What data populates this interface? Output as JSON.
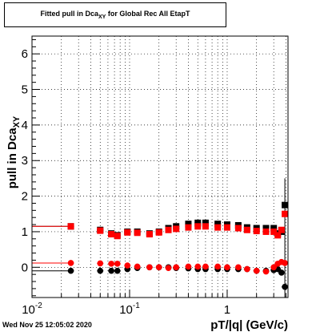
{
  "chart_data": {
    "type": "scatter",
    "title": "Fitted pull in Dca",
    "title_sub": "XY",
    "title_suffix": " for Global Rec All EtapT",
    "xlabel": "pT/|q| (GeV/c)",
    "ylabel": "pull in Dca",
    "ylabel_sub": "XY",
    "x_scale": "log",
    "xlim": [
      0.01,
      4.2
    ],
    "ylim": [
      -0.85,
      6.5
    ],
    "grid": true,
    "x_ticks": [
      {
        "value": 0.01,
        "label": "10",
        "exp": "-2"
      },
      {
        "value": 0.1,
        "label": "10",
        "exp": "-1"
      },
      {
        "value": 1,
        "label": "1",
        "exp": ""
      }
    ],
    "y_ticks": [
      0,
      1,
      2,
      3,
      4,
      5,
      6
    ],
    "colors": {
      "black": "#000000",
      "red": "#ff0000"
    },
    "series": [
      {
        "color": "black",
        "marker": "circle",
        "x": [
          0.025,
          0.05,
          0.065,
          0.075,
          0.095,
          0.12,
          0.16,
          0.2,
          0.25,
          0.3,
          0.4,
          0.5,
          0.6,
          0.8,
          1.0,
          1.3,
          1.6,
          2.0,
          2.5,
          3.0,
          3.3,
          3.6,
          3.9
        ],
        "y": [
          -0.1,
          -0.1,
          -0.1,
          -0.1,
          -0.05,
          -0.02,
          0.0,
          0.0,
          0.0,
          -0.02,
          -0.03,
          -0.05,
          -0.05,
          -0.05,
          -0.05,
          -0.05,
          -0.05,
          -0.1,
          -0.1,
          -0.08,
          -0.05,
          -0.15,
          -0.55
        ]
      },
      {
        "color": "red",
        "marker": "circle",
        "x": [
          0.025,
          0.05,
          0.065,
          0.075,
          0.095,
          0.12,
          0.16,
          0.2,
          0.25,
          0.3,
          0.4,
          0.5,
          0.6,
          0.8,
          1.0,
          1.3,
          1.6,
          2.0,
          2.5,
          3.0,
          3.3,
          3.6,
          3.9
        ],
        "y": [
          0.12,
          0.11,
          0.1,
          0.1,
          0.05,
          0.02,
          0.0,
          0.0,
          -0.02,
          0.0,
          0.02,
          0.02,
          0.02,
          0.02,
          0.0,
          0.0,
          -0.05,
          -0.1,
          -0.12,
          0.0,
          0.1,
          0.15,
          0.12
        ]
      },
      {
        "color": "black",
        "marker": "square",
        "x": [
          0.025,
          0.05,
          0.065,
          0.075,
          0.095,
          0.12,
          0.16,
          0.2,
          0.25,
          0.3,
          0.4,
          0.5,
          0.6,
          0.8,
          1.0,
          1.3,
          1.6,
          2.0,
          2.5,
          3.0,
          3.3,
          3.6,
          3.9
        ],
        "y": [
          1.15,
          1.05,
          0.95,
          0.9,
          1.0,
          1.0,
          0.95,
          1.0,
          1.1,
          1.15,
          1.22,
          1.25,
          1.25,
          1.22,
          1.2,
          1.18,
          1.12,
          1.1,
          1.1,
          1.1,
          0.95,
          1.0,
          1.75
        ]
      },
      {
        "color": "red",
        "marker": "square",
        "x": [
          0.025,
          0.05,
          0.065,
          0.075,
          0.095,
          0.12,
          0.16,
          0.2,
          0.25,
          0.3,
          0.4,
          0.5,
          0.6,
          0.8,
          1.0,
          1.3,
          1.6,
          2.0,
          2.5,
          3.0,
          3.3,
          3.6,
          3.9
        ],
        "y": [
          1.15,
          1.03,
          0.93,
          0.88,
          0.98,
          0.97,
          0.93,
          0.98,
          1.05,
          1.08,
          1.12,
          1.15,
          1.15,
          1.12,
          1.12,
          1.1,
          1.05,
          1.02,
          1.0,
          1.0,
          0.9,
          1.05,
          1.5
        ]
      }
    ]
  },
  "footer": "Wed Nov 25 12:05:02 2020"
}
